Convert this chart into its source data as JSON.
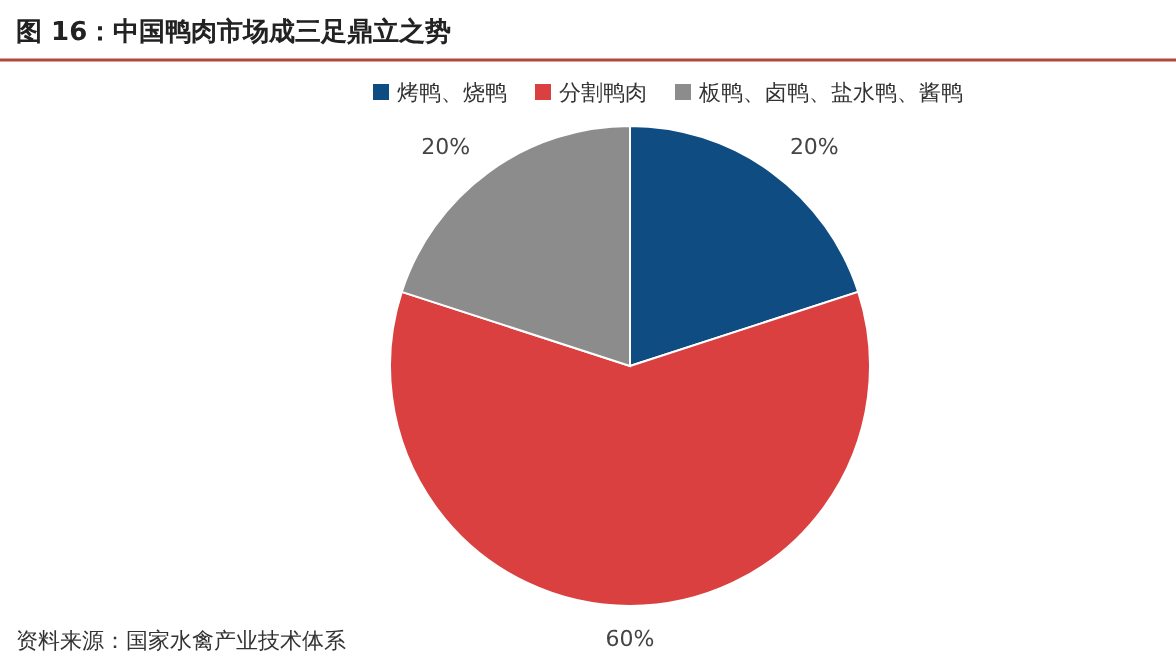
{
  "chart_data": {
    "type": "pie",
    "title": "图 16：中国鸭肉市场成三足鼎立之势",
    "categories": [
      "烤鸭、烧鸭",
      "分割鸭肉",
      "板鸭、卤鸭、盐水鸭、酱鸭"
    ],
    "values": [
      20,
      60,
      20
    ],
    "colors": [
      "#0f4c81",
      "#d9403f",
      "#8c8c8c"
    ],
    "value_labels": [
      "20%",
      "60%",
      "20%"
    ],
    "legend": "top",
    "annotations": [
      "资料来源：国家水禽产业技术体系"
    ]
  }
}
